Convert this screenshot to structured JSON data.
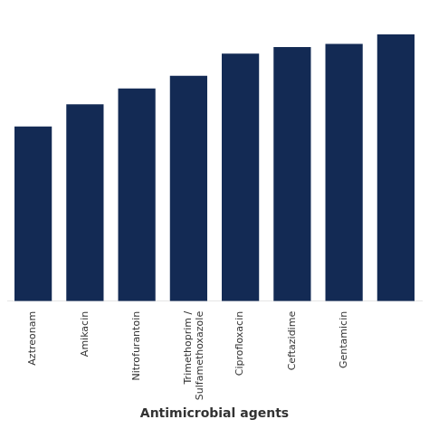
{
  "chart_data": {
    "type": "bar",
    "categories": [
      "Aztreonam",
      "Amikacin",
      "Nitrofurantoin",
      "Trimethoprim /\nSulfamethoxazole",
      "Ciprofloxacin",
      "Ceftazidime",
      "Gentamicin",
      null
    ],
    "values": [
      55,
      62,
      67,
      71,
      78,
      80,
      81,
      84
    ],
    "color": "#132A54",
    "xlabel": "Antimicrobial agents",
    "ylim": [
      0,
      92
    ],
    "grid": false,
    "tick_labels": "x"
  }
}
